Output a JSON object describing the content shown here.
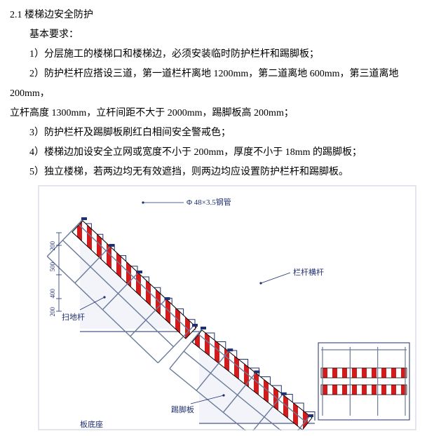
{
  "heading": "2.1 楼梯边安全防护",
  "lines": [
    "基本要求：",
    "1）分层施工的楼梯口和楼梯边，必须安装临时防护栏杆和踢脚板；",
    "2）防护栏杆应搭设三道，第一道栏杆离地 1200mm，第二道离地 600mm，第三道离地 200mm，",
    "立杆高度 1300mm，立杆间距不大于 2000mm，踢脚板高 200mm；",
    "3）防护栏杆及踢脚板刷红白相间安全警戒色；",
    "4）楼梯边加设安全立网或宽度不小于 200mm，厚度不小于 18mm 的踢脚板；",
    "5）独立楼梯，若两边均无有效遮挡，则两边均应设置防护栏杆和踢脚板。"
  ],
  "line_classes": [
    "para",
    "para",
    "para",
    "heading",
    "para",
    "para",
    "para"
  ],
  "diagram": {
    "colors": {
      "stripe_red": "#d31b1b",
      "stripe_white": "#ffffff",
      "line_black": "#000000",
      "line_blue": "#1f2f6f",
      "fill_light": "#f2f4fa",
      "rail_grey": "#6a7a9a",
      "label_text": "#1f2f6f"
    },
    "labels": {
      "pipe": "Φ 48×3.5钢管",
      "crossbar": "栏杆横杆",
      "sweep": "扫地杆",
      "kick": "踢脚板",
      "base": "板底座"
    },
    "dims": [
      "200",
      "400",
      "500",
      "200"
    ],
    "font": {
      "label_size": 11,
      "dim_size": 9
    }
  }
}
